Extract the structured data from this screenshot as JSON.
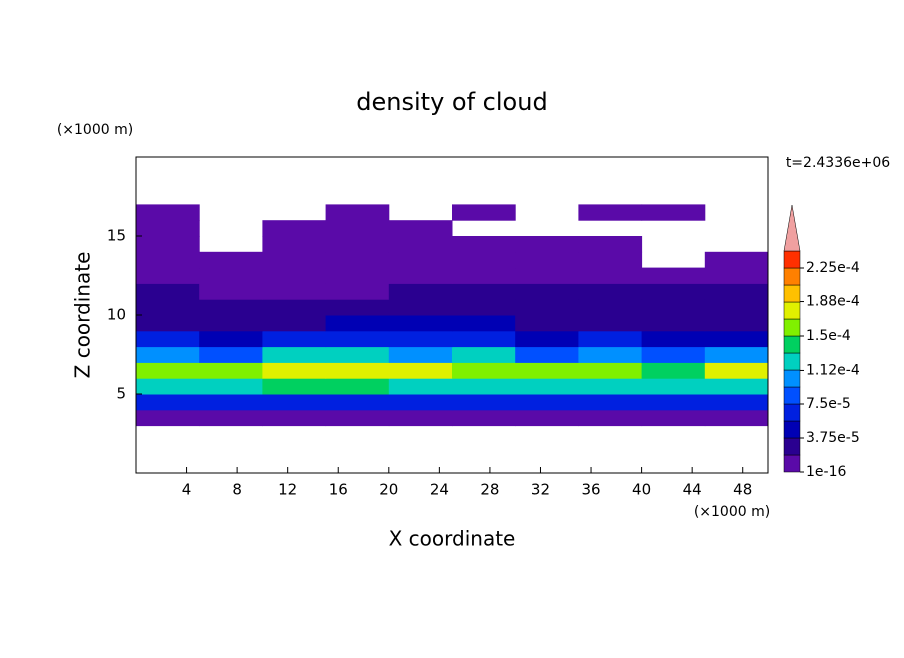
{
  "chart_data": {
    "type": "contour",
    "title": "density of cloud",
    "xlabel": "X coordinate",
    "ylabel": "Z coordinate",
    "x_unit": "(×1000 m)",
    "y_unit": "(×1000 m)",
    "time_label": "t=2.4336e+06",
    "xlim": [
      0,
      50
    ],
    "ylim": [
      0,
      20
    ],
    "xticks": [
      4,
      8,
      12,
      16,
      20,
      24,
      28,
      32,
      36,
      40,
      44,
      48
    ],
    "yticks": [
      5,
      10,
      15
    ],
    "x_edges": [
      0,
      5,
      10,
      15,
      20,
      25,
      30,
      35,
      40,
      45,
      50
    ],
    "z_edges": [
      0,
      1,
      2,
      3,
      4,
      5,
      6,
      7,
      8,
      9,
      10,
      11,
      12,
      13,
      14,
      15,
      16,
      17,
      18,
      19,
      20
    ],
    "values": [
      [
        null,
        null,
        null,
        null,
        null,
        null,
        null,
        null,
        null,
        null
      ],
      [
        null,
        null,
        null,
        null,
        null,
        null,
        null,
        null,
        null,
        null
      ],
      [
        null,
        null,
        null,
        null,
        null,
        null,
        null,
        null,
        null,
        null
      ],
      [
        1e-05,
        1e-05,
        1e-05,
        1e-05,
        1e-05,
        1e-05,
        1e-05,
        1e-05,
        1e-05,
        1e-05
      ],
      [
        6e-05,
        6e-05,
        7e-05,
        7e-05,
        7e-05,
        7e-05,
        6e-05,
        6e-05,
        7e-05,
        6e-05
      ],
      [
        0.00012,
        0.00013,
        0.00014,
        0.00014,
        0.00013,
        0.00012,
        0.00013,
        0.00013,
        0.00012,
        0.00013
      ],
      [
        0.00016,
        0.00015,
        0.00018,
        0.00018,
        0.00017,
        0.00016,
        0.00015,
        0.00016,
        0.00014,
        0.00017
      ],
      [
        0.00011,
        9e-05,
        0.00012,
        0.00012,
        0.00011,
        0.00012,
        8e-05,
        0.0001,
        9e-05,
        0.0001
      ],
      [
        6e-05,
        5e-05,
        6e-05,
        7e-05,
        6e-05,
        6e-05,
        5e-05,
        6e-05,
        5e-05,
        5e-05
      ],
      [
        3.5e-05,
        3e-05,
        3e-05,
        4e-05,
        4e-05,
        4e-05,
        3e-05,
        3.5e-05,
        3e-05,
        3e-05
      ],
      [
        2.5e-05,
        2e-05,
        2e-05,
        2.5e-05,
        2.5e-05,
        3e-05,
        2.5e-05,
        2.5e-05,
        2e-05,
        2.5e-05
      ],
      [
        2e-05,
        1.5e-05,
        1e-05,
        1e-05,
        2e-05,
        2e-05,
        2e-05,
        2e-05,
        2e-05,
        2e-05
      ],
      [
        1.5e-05,
        1e-05,
        1e-05,
        1e-05,
        1e-05,
        1e-05,
        1e-05,
        1e-05,
        1e-05,
        1.5e-05
      ],
      [
        1e-05,
        1e-05,
        1e-05,
        1e-05,
        1e-05,
        1e-05,
        1e-05,
        1e-05,
        null,
        1e-05
      ],
      [
        1e-05,
        null,
        1e-05,
        1e-05,
        1e-05,
        1e-05,
        1e-05,
        1e-05,
        null,
        null
      ],
      [
        1e-05,
        null,
        1e-05,
        1e-05,
        1e-05,
        null,
        null,
        null,
        null,
        null
      ],
      [
        1e-05,
        null,
        null,
        1e-05,
        null,
        1e-05,
        null,
        1e-05,
        1e-05,
        null
      ],
      [
        null,
        null,
        null,
        null,
        null,
        null,
        null,
        null,
        null,
        null
      ],
      [
        null,
        null,
        null,
        null,
        null,
        null,
        null,
        null,
        null,
        null
      ],
      [
        null,
        null,
        null,
        null,
        null,
        null,
        null,
        null,
        null,
        null
      ]
    ],
    "colorbar_ticks": [
      {
        "value": 1e-16,
        "label": "1e-16"
      },
      {
        "value": 3.75e-05,
        "label": "3.75e-5"
      },
      {
        "value": 7.5e-05,
        "label": "7.5e-5"
      },
      {
        "value": 0.000112,
        "label": "1.12e-4"
      },
      {
        "value": 0.00015,
        "label": "1.5e-4"
      },
      {
        "value": 0.000188,
        "label": "1.88e-4"
      },
      {
        "value": 0.000225,
        "label": "2.25e-4"
      }
    ],
    "colors": [
      "#5a0aa8",
      "#2a0090",
      "#0000b4",
      "#0020e0",
      "#0050ff",
      "#0090ff",
      "#00d0c0",
      "#00d060",
      "#80f000",
      "#e0f000",
      "#ffc000",
      "#ff8000",
      "#ff3000"
    ],
    "extend_color": "#f0a0a0"
  }
}
